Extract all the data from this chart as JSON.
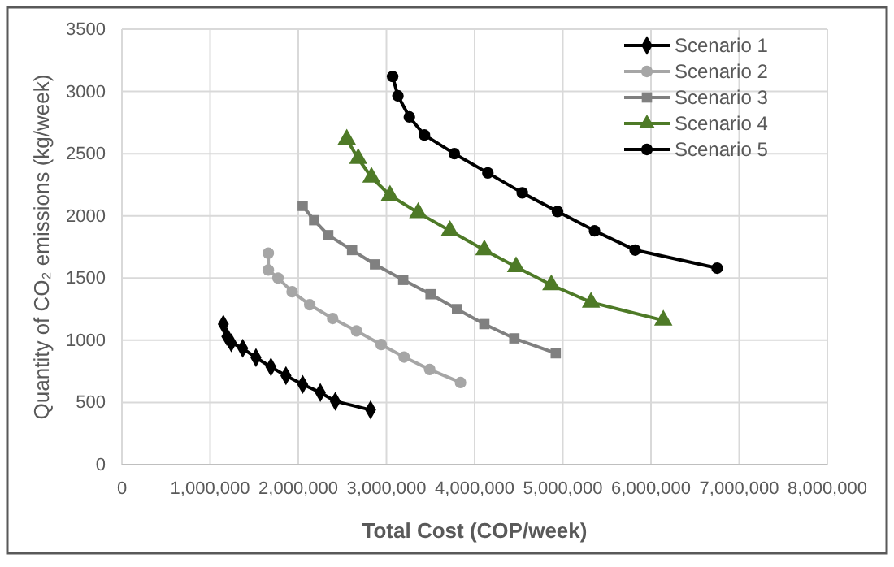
{
  "chart_data": {
    "type": "line",
    "xlabel": "Total Cost (COP/week)",
    "ylabel": "Quantity of CO₂ emissions (kg/week)",
    "xlim": [
      0,
      8000000
    ],
    "xticks": [
      {
        "value": 0,
        "label": "0"
      },
      {
        "value": 1000000,
        "label": "1,000,000"
      },
      {
        "value": 2000000,
        "label": "2,000,000"
      },
      {
        "value": 3000000,
        "label": "3,000,000"
      },
      {
        "value": 4000000,
        "label": "4,000,000"
      },
      {
        "value": 5000000,
        "label": "5,000,000"
      },
      {
        "value": 6000000,
        "label": "6,000,000"
      },
      {
        "value": 7000000,
        "label": "7,000,000"
      },
      {
        "value": 8000000,
        "label": "8,000,000"
      }
    ],
    "ylim": [
      0,
      3500
    ],
    "yticks": [
      0,
      500,
      1000,
      1500,
      2000,
      2500,
      3000,
      3500
    ],
    "grid": true,
    "legend": "top right",
    "series": [
      {
        "name": "Scenario 1",
        "color": "#000000",
        "marker": "diamond",
        "x": [
          1150000,
          1190000,
          1240000,
          1370000,
          1520000,
          1690000,
          1860000,
          2050000,
          2250000,
          2420000,
          2820000
        ],
        "values": [
          1130,
          1030,
          980,
          935,
          860,
          785,
          715,
          645,
          580,
          510,
          440
        ]
      },
      {
        "name": "Scenario 2",
        "color": "#a6a6a6",
        "marker": "circle",
        "x": [
          1660000,
          1660000,
          1770000,
          1930000,
          2130000,
          2390000,
          2660000,
          2940000,
          3200000,
          3490000,
          3840000
        ],
        "values": [
          1700,
          1565,
          1500,
          1390,
          1285,
          1175,
          1075,
          965,
          865,
          765,
          660
        ]
      },
      {
        "name": "Scenario 3",
        "color": "#808080",
        "marker": "square",
        "x": [
          2050000,
          2180000,
          2340000,
          2610000,
          2870000,
          3190000,
          3500000,
          3800000,
          4110000,
          4450000,
          4920000
        ],
        "values": [
          2080,
          1965,
          1845,
          1725,
          1610,
          1485,
          1370,
          1250,
          1130,
          1015,
          895
        ]
      },
      {
        "name": "Scenario 4",
        "color": "#4e7a27",
        "marker": "triangle",
        "x": [
          2550000,
          2680000,
          2830000,
          3040000,
          3360000,
          3720000,
          4110000,
          4470000,
          4870000,
          5320000,
          6140000
        ],
        "values": [
          2615,
          2460,
          2310,
          2165,
          2025,
          1880,
          1725,
          1590,
          1445,
          1305,
          1160
        ]
      },
      {
        "name": "Scenario 5",
        "color": "#000000",
        "marker": "circle",
        "x": [
          3070000,
          3130000,
          3260000,
          3430000,
          3770000,
          4150000,
          4540000,
          4940000,
          5360000,
          5820000,
          6750000
        ],
        "values": [
          3120,
          2965,
          2795,
          2650,
          2500,
          2345,
          2185,
          2035,
          1880,
          1725,
          1580
        ]
      }
    ]
  }
}
